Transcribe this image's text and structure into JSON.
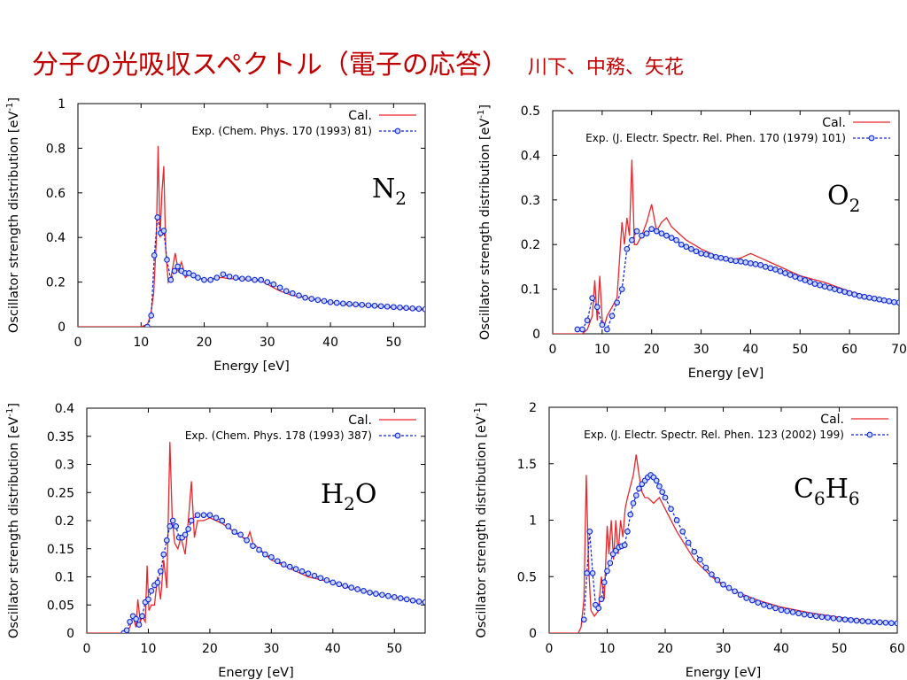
{
  "page": {
    "title": "分子の光吸収スペクトル（電子の応答）",
    "authors": "川下、中務、矢花",
    "colors": {
      "title": "#c00000",
      "calc": "#e8262b",
      "exp": "#0b24d8",
      "marker_fill": "#c8d4ff"
    }
  },
  "chart_data": [
    {
      "type": "line",
      "molecule": {
        "main": "N",
        "sub": "2",
        "tail": ""
      },
      "xlabel": "Energy [eV]",
      "ylabel": "Oscillator strength distribution [eV",
      "ylabel_sup": "-1",
      "ylabel_tail": "]",
      "xlim": [
        0,
        55
      ],
      "ylim": [
        0,
        1
      ],
      "xticks": [
        "0",
        "10",
        "20",
        "30",
        "40",
        "50"
      ],
      "yticks": [
        "0",
        "0.2",
        "0.4",
        "0.6",
        "0.8",
        "1"
      ],
      "legend": "top-right",
      "series": [
        {
          "name": "Cal.",
          "style": "line",
          "x": [
            0,
            10,
            11,
            11.5,
            12,
            12.4,
            12.7,
            13.0,
            13.3,
            13.6,
            13.9,
            14.3,
            14.8,
            15.4,
            15.9,
            16.4,
            17.0,
            17.8,
            19,
            20,
            21,
            22,
            23,
            24,
            25,
            27,
            29,
            30,
            31,
            32,
            34,
            36,
            38,
            40,
            42,
            45,
            48,
            50,
            52,
            55
          ],
          "y": [
            0,
            0,
            0.01,
            0.05,
            0.15,
            0.38,
            0.81,
            0.4,
            0.6,
            0.72,
            0.35,
            0.2,
            0.23,
            0.33,
            0.25,
            0.29,
            0.22,
            0.24,
            0.22,
            0.21,
            0.21,
            0.22,
            0.22,
            0.215,
            0.215,
            0.21,
            0.205,
            0.19,
            0.175,
            0.16,
            0.14,
            0.13,
            0.12,
            0.11,
            0.1,
            0.095,
            0.09,
            0.085,
            0.08,
            0.075
          ]
        },
        {
          "name": "Exp. (Chem. Phys. 170 (1993) 81)",
          "style": "dotted-markers",
          "x": [
            11,
            11.6,
            12.1,
            12.6,
            13.1,
            13.6,
            14.1,
            14.7,
            15.3,
            15.8,
            16.4,
            17.0,
            17.6,
            18.3,
            19,
            20,
            21,
            22,
            23,
            24,
            25,
            26,
            27,
            28,
            29,
            30,
            31,
            32,
            33,
            34,
            35,
            36,
            37,
            38,
            39,
            40,
            41,
            42,
            43,
            44,
            45,
            46,
            47,
            48,
            49,
            50,
            51,
            52,
            53,
            54,
            55
          ],
          "y": [
            0,
            0.05,
            0.32,
            0.49,
            0.42,
            0.43,
            0.3,
            0.21,
            0.25,
            0.27,
            0.25,
            0.24,
            0.24,
            0.23,
            0.22,
            0.21,
            0.21,
            0.22,
            0.235,
            0.225,
            0.22,
            0.215,
            0.215,
            0.21,
            0.21,
            0.2,
            0.19,
            0.175,
            0.16,
            0.15,
            0.14,
            0.13,
            0.125,
            0.12,
            0.115,
            0.11,
            0.107,
            0.104,
            0.102,
            0.1,
            0.098,
            0.096,
            0.094,
            0.092,
            0.09,
            0.088,
            0.086,
            0.084,
            0.082,
            0.08,
            0.078
          ]
        }
      ]
    },
    {
      "type": "line",
      "molecule": {
        "main": "O",
        "sub": "2",
        "tail": ""
      },
      "xlabel": "Energy [eV]",
      "ylabel": "Oscillator strength distribution [eV",
      "ylabel_sup": "-1",
      "ylabel_tail": "]",
      "xlim": [
        0,
        70
      ],
      "ylim": [
        0,
        0.5
      ],
      "xticks": [
        "0",
        "10",
        "20",
        "30",
        "40",
        "50",
        "60",
        "70"
      ],
      "yticks": [
        "0",
        "0.1",
        "0.2",
        "0.3",
        "0.4",
        "0.5"
      ],
      "legend": "top-right",
      "series": [
        {
          "name": "Cal.",
          "style": "line",
          "x": [
            0,
            6,
            7,
            8,
            8.5,
            9,
            9.5,
            10,
            10.5,
            11,
            12,
            13,
            14,
            14.5,
            15,
            15.5,
            16,
            16.5,
            17,
            18,
            19,
            20,
            21,
            22,
            23,
            24,
            25,
            27,
            30,
            33,
            36,
            38,
            40,
            42,
            44,
            47,
            50,
            55,
            60,
            65,
            70
          ],
          "y": [
            0,
            0,
            0.01,
            0.04,
            0.12,
            0.03,
            0.13,
            0.03,
            0.02,
            0.04,
            0.06,
            0.08,
            0.25,
            0.2,
            0.26,
            0.22,
            0.39,
            0.2,
            0.2,
            0.22,
            0.25,
            0.29,
            0.23,
            0.25,
            0.26,
            0.24,
            0.23,
            0.21,
            0.19,
            0.175,
            0.165,
            0.17,
            0.18,
            0.17,
            0.16,
            0.145,
            0.13,
            0.115,
            0.095,
            0.08,
            0.07
          ]
        },
        {
          "name": "Exp. (J. Electr. Spectr. Rel. Phen. 170 (1979) 101)",
          "style": "dotted-markers",
          "x": [
            5,
            6,
            7,
            8,
            9,
            10,
            11,
            12,
            13,
            14,
            15,
            16,
            17,
            18,
            19,
            20,
            21,
            22,
            23,
            24,
            25,
            26,
            27,
            28,
            29,
            30,
            31,
            32,
            33,
            34,
            35,
            36,
            37,
            38,
            39,
            40,
            41,
            42,
            43,
            44,
            45,
            46,
            47,
            48,
            49,
            50,
            51,
            52,
            53,
            54,
            55,
            56,
            57,
            58,
            59,
            60,
            61,
            62,
            63,
            64,
            65,
            66,
            67,
            68,
            69,
            70
          ],
          "y": [
            0.01,
            0.01,
            0.03,
            0.08,
            0.06,
            0.02,
            0.01,
            0.04,
            0.07,
            0.1,
            0.19,
            0.21,
            0.23,
            0.22,
            0.225,
            0.235,
            0.23,
            0.225,
            0.22,
            0.215,
            0.21,
            0.2,
            0.195,
            0.19,
            0.185,
            0.18,
            0.178,
            0.175,
            0.172,
            0.17,
            0.168,
            0.165,
            0.163,
            0.162,
            0.16,
            0.158,
            0.156,
            0.154,
            0.15,
            0.147,
            0.144,
            0.14,
            0.136,
            0.132,
            0.128,
            0.124,
            0.12,
            0.116,
            0.112,
            0.109,
            0.106,
            0.103,
            0.1,
            0.097,
            0.094,
            0.091,
            0.088,
            0.085,
            0.083,
            0.081,
            0.079,
            0.077,
            0.075,
            0.073,
            0.071,
            0.07
          ]
        }
      ]
    },
    {
      "type": "line",
      "molecule": {
        "main": "H",
        "sub": "2",
        "tail": "O"
      },
      "xlabel": "Energy [eV]",
      "ylabel": "Oscillator strength distribution [eV",
      "ylabel_sup": "-1",
      "ylabel_tail": "]",
      "xlim": [
        0,
        55
      ],
      "ylim": [
        0,
        0.4
      ],
      "xticks": [
        "0",
        "10",
        "20",
        "30",
        "40",
        "50"
      ],
      "yticks": [
        "0",
        "0.05",
        "0.1",
        "0.15",
        "0.2",
        "0.25",
        "0.3",
        "0.35",
        "0.4"
      ],
      "legend": "top-right",
      "series": [
        {
          "name": "Cal.",
          "style": "line",
          "x": [
            0,
            6,
            7,
            7.5,
            8,
            8.3,
            8.7,
            9,
            9.5,
            9.8,
            10.1,
            10.5,
            11,
            11.5,
            12,
            12.5,
            13,
            13.5,
            13.9,
            14.3,
            14.8,
            15.3,
            16,
            16.5,
            17,
            17.5,
            18,
            19,
            20,
            21,
            22,
            24,
            26,
            26.5,
            27,
            28,
            30,
            32,
            34,
            36,
            38,
            40,
            42,
            45,
            48,
            50,
            52,
            55
          ],
          "y": [
            0,
            0,
            0.01,
            0.03,
            0.01,
            0.06,
            0.02,
            0.03,
            0.02,
            0.12,
            0.04,
            0.05,
            0.05,
            0.1,
            0.06,
            0.13,
            0.08,
            0.34,
            0.2,
            0.16,
            0.15,
            0.17,
            0.14,
            0.2,
            0.27,
            0.17,
            0.2,
            0.2,
            0.205,
            0.2,
            0.195,
            0.18,
            0.165,
            0.18,
            0.16,
            0.15,
            0.13,
            0.12,
            0.11,
            0.1,
            0.095,
            0.09,
            0.082,
            0.075,
            0.068,
            0.064,
            0.06,
            0.055
          ]
        },
        {
          "name": "Exp. (Chem. Phys. 178 (1993) 387)",
          "style": "dotted-markers",
          "x": [
            6,
            6.5,
            7,
            7.5,
            8,
            8.5,
            9,
            9.5,
            10,
            10.5,
            11,
            11.5,
            12,
            12.5,
            13,
            13.5,
            14,
            14.5,
            15,
            15.5,
            16,
            16.5,
            17,
            18,
            19,
            20,
            21,
            22,
            23,
            24,
            25,
            26,
            27,
            28,
            29,
            30,
            31,
            32,
            33,
            34,
            35,
            36,
            37,
            38,
            39,
            40,
            41,
            42,
            43,
            44,
            45,
            46,
            47,
            48,
            49,
            50,
            51,
            52,
            53,
            54,
            55
          ],
          "y": [
            0,
            0.005,
            0.02,
            0.03,
            0.025,
            0.015,
            0.03,
            0.055,
            0.06,
            0.075,
            0.085,
            0.09,
            0.11,
            0.14,
            0.165,
            0.19,
            0.2,
            0.19,
            0.17,
            0.17,
            0.175,
            0.185,
            0.2,
            0.21,
            0.21,
            0.21,
            0.205,
            0.2,
            0.19,
            0.18,
            0.175,
            0.165,
            0.155,
            0.148,
            0.14,
            0.135,
            0.128,
            0.122,
            0.118,
            0.114,
            0.11,
            0.106,
            0.102,
            0.098,
            0.094,
            0.09,
            0.087,
            0.084,
            0.081,
            0.078,
            0.075,
            0.072,
            0.07,
            0.068,
            0.066,
            0.064,
            0.062,
            0.06,
            0.058,
            0.056,
            0.055
          ]
        }
      ]
    },
    {
      "type": "line",
      "molecule": {
        "main": "C",
        "sub": "6",
        "tail": "H",
        "sub2": "6"
      },
      "xlabel": "Energy [eV]",
      "ylabel": "Oscillator strength distribution [eV",
      "ylabel_sup": "-1",
      "ylabel_tail": "]",
      "xlim": [
        0,
        60
      ],
      "ylim": [
        0,
        2
      ],
      "xticks": [
        "0",
        "10",
        "20",
        "30",
        "40",
        "50",
        "60"
      ],
      "yticks": [
        "0",
        "0.5",
        "1",
        "1.5",
        "2"
      ],
      "legend": "top-right",
      "series": [
        {
          "name": "Cal.",
          "style": "line",
          "x": [
            0,
            5,
            5.5,
            6,
            6.4,
            6.8,
            7.2,
            7.8,
            8.5,
            9,
            9.5,
            10,
            10.3,
            10.7,
            11.1,
            11.5,
            11.9,
            12.3,
            12.7,
            13.1,
            13.5,
            14,
            14.5,
            15,
            15.5,
            16,
            16.5,
            17,
            18,
            19,
            20,
            22,
            25,
            28,
            30,
            33,
            36,
            40,
            45,
            50,
            55,
            60
          ],
          "y": [
            0,
            0,
            0.05,
            0.3,
            1.4,
            0.6,
            0.2,
            0.15,
            0.2,
            0.5,
            0.3,
            0.95,
            0.7,
            1.0,
            0.65,
            1.0,
            0.7,
            1.0,
            0.85,
            1.1,
            1.2,
            1.3,
            1.4,
            1.58,
            1.4,
            1.25,
            1.2,
            1.2,
            1.15,
            1.2,
            1.1,
            0.9,
            0.65,
            0.5,
            0.42,
            0.35,
            0.29,
            0.23,
            0.18,
            0.14,
            0.11,
            0.09
          ]
        },
        {
          "name": "Exp. (J. Electr. Spectr. Rel. Phen. 123 (2002) 199)",
          "style": "dotted-markers",
          "x": [
            6,
            6.5,
            7,
            7.5,
            8,
            8.5,
            9,
            9.5,
            10,
            10.5,
            11,
            11.5,
            12,
            12.5,
            13,
            13.5,
            14,
            14.5,
            15,
            15.5,
            16,
            16.5,
            17,
            17.5,
            18,
            18.5,
            19,
            19.5,
            20,
            21,
            22,
            23,
            24,
            25,
            26,
            27,
            28,
            29,
            30,
            31,
            32,
            33,
            34,
            35,
            36,
            37,
            38,
            39,
            40,
            41,
            42,
            43,
            44,
            45,
            46,
            47,
            48,
            49,
            50,
            51,
            52,
            53,
            54,
            55,
            56,
            57,
            58,
            59,
            60
          ],
          "y": [
            0.12,
            0.53,
            0.9,
            0.53,
            0.25,
            0.22,
            0.3,
            0.45,
            0.55,
            0.62,
            0.7,
            0.73,
            0.76,
            0.77,
            0.78,
            0.9,
            1.05,
            1.15,
            1.22,
            1.28,
            1.32,
            1.35,
            1.38,
            1.4,
            1.38,
            1.35,
            1.3,
            1.25,
            1.2,
            1.1,
            1.0,
            0.9,
            0.8,
            0.72,
            0.65,
            0.58,
            0.52,
            0.47,
            0.43,
            0.4,
            0.37,
            0.34,
            0.31,
            0.29,
            0.27,
            0.25,
            0.235,
            0.22,
            0.205,
            0.195,
            0.185,
            0.175,
            0.165,
            0.158,
            0.15,
            0.143,
            0.137,
            0.131,
            0.125,
            0.12,
            0.115,
            0.11,
            0.106,
            0.102,
            0.098,
            0.095,
            0.092,
            0.089,
            0.086
          ]
        }
      ]
    }
  ]
}
